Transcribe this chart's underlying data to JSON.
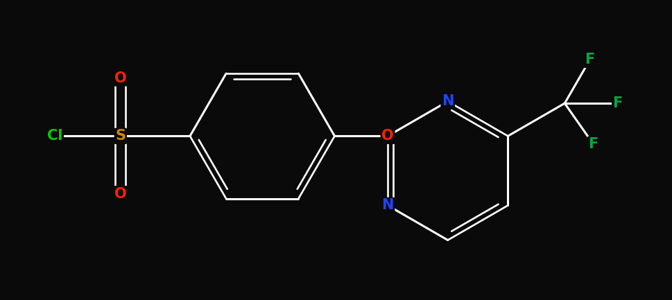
{
  "background_color": "#0a0a0a",
  "bond_color": "#ffffff",
  "bond_width": 2.2,
  "atoms": {
    "Cl": {
      "color": "#00cc00",
      "fontsize": 15
    },
    "S": {
      "color": "#cc8800",
      "fontsize": 15
    },
    "O": {
      "color": "#ff2200",
      "fontsize": 15
    },
    "N": {
      "color": "#2244ff",
      "fontsize": 15
    },
    "F": {
      "color": "#00aa44",
      "fontsize": 15
    }
  },
  "figsize": [
    9.7,
    4.33
  ],
  "dpi": 100
}
